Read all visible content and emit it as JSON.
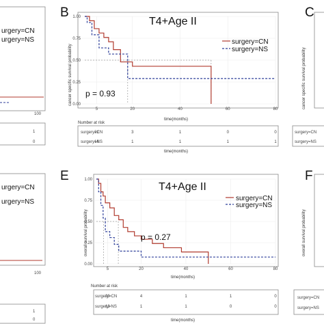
{
  "colors": {
    "cn": "#b03a2e",
    "ns": "#2c3e99",
    "frame": "#888888",
    "grid": "#ececec",
    "median": "#999999"
  },
  "panels": {
    "B": {
      "letter": "B"
    },
    "C": {
      "letter": "C"
    },
    "E": {
      "letter": "E"
    },
    "F": {
      "letter": "F"
    }
  },
  "left_partial": {
    "top_legend": [
      "urgery=CN",
      "urgery=NS"
    ],
    "top_tick": "100",
    "top_risk_values": [
      "1",
      "0"
    ],
    "bottom_legend": [
      "urgery=CN",
      "urgery=NS"
    ],
    "bottom_tick": "100",
    "bottom_risk_values": [
      "1",
      "0"
    ]
  },
  "right_partial": {
    "C_ylabel": "cancer specific survival probability",
    "C_risk_labels": [
      "surgery=CN",
      "surgery=NS"
    ],
    "F_ylabel": "overall survival probability",
    "F_risk_labels": [
      "surgery=CN",
      "surgery=NS"
    ]
  },
  "chart_data": [
    {
      "type": "line",
      "panel": "B",
      "title": "T4+Age II",
      "ylabel": "cancer specific survival probability",
      "xlabel": "time(months)",
      "xlim": [
        0,
        80
      ],
      "ylim": [
        0,
        1
      ],
      "x_ticks": [
        "5",
        "20",
        "40",
        "60",
        "80"
      ],
      "y_ticks": [
        "0.00",
        "0.25",
        "0.50",
        "0.75",
        "1.00"
      ],
      "grid": true,
      "legend_position": "top-right",
      "p_value": "p = 0.93",
      "series": [
        {
          "name": "surgery=CN",
          "color": "#b03a2e",
          "dash": "solid",
          "steps": [
            [
              0,
              1.0
            ],
            [
              2,
              0.95
            ],
            [
              4,
              0.86
            ],
            [
              6,
              0.81
            ],
            [
              8,
              0.76
            ],
            [
              10,
              0.71
            ],
            [
              12,
              0.62
            ],
            [
              15,
              0.48
            ],
            [
              20,
              0.43
            ],
            [
              53,
              0.43
            ],
            [
              53,
              0.0
            ]
          ]
        },
        {
          "name": "surgery=NS",
          "color": "#2c3e99",
          "dash": "dashed",
          "steps": [
            [
              0,
              1.0
            ],
            [
              1,
              0.93
            ],
            [
              3,
              0.79
            ],
            [
              6,
              0.64
            ],
            [
              10,
              0.57
            ],
            [
              18,
              0.57
            ],
            [
              18,
              0.29
            ],
            [
              80,
              0.29
            ]
          ]
        }
      ],
      "risk_table": {
        "title": "Number at risk",
        "xlabel": "time(months)",
        "x_ticks": [
          "5",
          "20",
          "40",
          "60",
          "80"
        ],
        "rows": [
          {
            "label": "surgery=CN",
            "values": [
              "21",
              "3",
              "1",
              "0",
              "0"
            ]
          },
          {
            "label": "surgery=NS",
            "values": [
              "14",
              "1",
              "1",
              "1",
              "1"
            ]
          }
        ]
      }
    },
    {
      "type": "line",
      "panel": "E",
      "title": "T4+Age II",
      "ylabel": "overall survival probability",
      "xlabel": "time(months)",
      "xlim": [
        0,
        80
      ],
      "ylim": [
        0,
        1
      ],
      "x_ticks": [
        "5",
        "20",
        "40",
        "60",
        "80"
      ],
      "y_ticks": [
        "0.00",
        "0.25",
        "0.50",
        "0.75",
        "1.00"
      ],
      "grid": true,
      "legend_position": "top-right",
      "p_value": "p = 0.27",
      "series": [
        {
          "name": "surgery=CN",
          "color": "#b03a2e",
          "dash": "solid",
          "steps": [
            [
              0,
              1.0
            ],
            [
              1,
              0.95
            ],
            [
              2,
              0.85
            ],
            [
              3,
              0.8
            ],
            [
              4,
              0.72
            ],
            [
              6,
              0.66
            ],
            [
              8,
              0.57
            ],
            [
              10,
              0.52
            ],
            [
              12,
              0.43
            ],
            [
              14,
              0.38
            ],
            [
              17,
              0.33
            ],
            [
              20,
              0.29
            ],
            [
              25,
              0.24
            ],
            [
              30,
              0.19
            ],
            [
              38,
              0.14
            ],
            [
              50,
              0.14
            ],
            [
              50,
              0.0
            ]
          ]
        },
        {
          "name": "surgery=NS",
          "color": "#2c3e99",
          "dash": "dashed",
          "steps": [
            [
              0,
              1.0
            ],
            [
              1,
              0.85
            ],
            [
              2,
              0.69
            ],
            [
              3,
              0.54
            ],
            [
              4,
              0.38
            ],
            [
              6,
              0.31
            ],
            [
              8,
              0.23
            ],
            [
              10,
              0.15
            ],
            [
              20,
              0.08
            ],
            [
              80,
              0.08
            ]
          ]
        }
      ],
      "risk_table": {
        "title": "Number at risk",
        "xlabel": "time(months)",
        "x_ticks": [
          "5",
          "20",
          "40",
          "60",
          "80"
        ],
        "rows": [
          {
            "label": "surgery=CN",
            "values": [
              "20",
              "4",
              "1",
              "1",
              "0"
            ]
          },
          {
            "label": "surgery=NS",
            "values": [
              "13",
              "1",
              "1",
              "0",
              "0"
            ]
          }
        ]
      }
    }
  ]
}
